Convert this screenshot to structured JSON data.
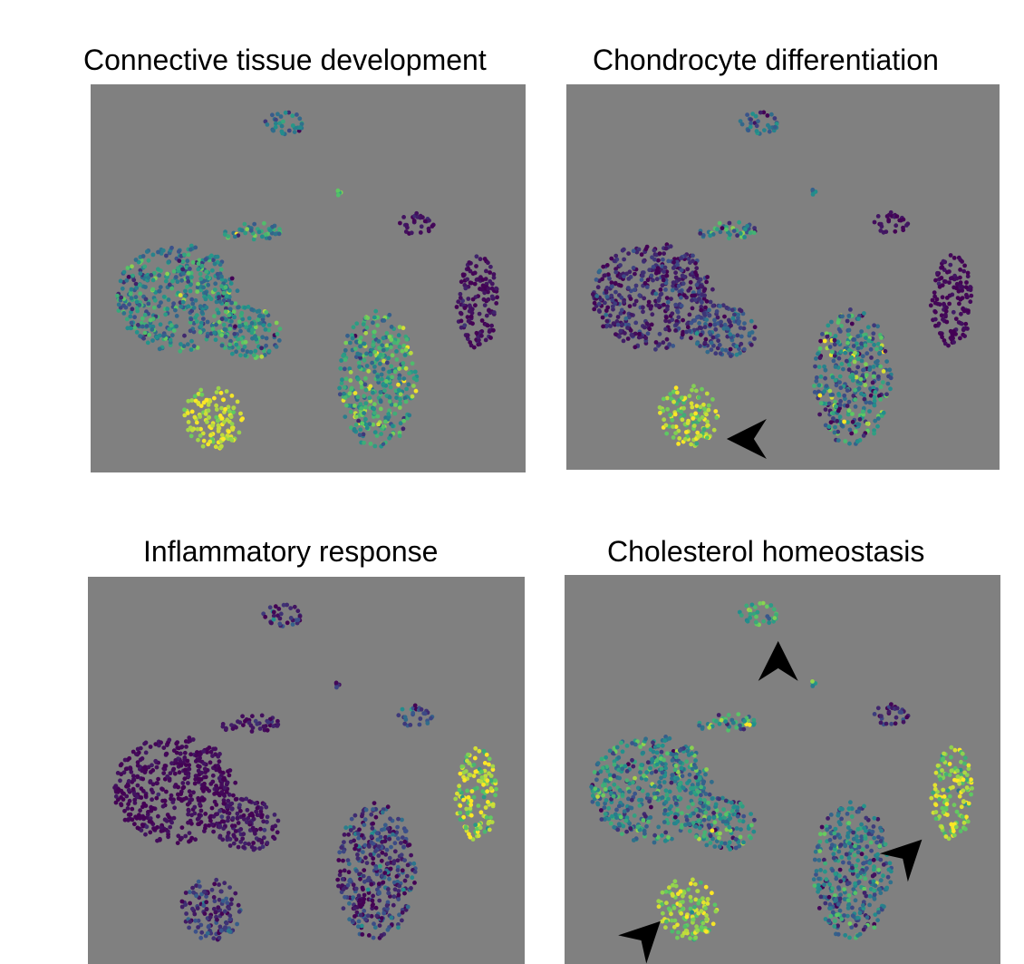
{
  "figure": {
    "colors": {
      "background": "#808080",
      "low": "#440154",
      "mid": "#21918c",
      "high": "#fde725",
      "arrow": "#000000"
    }
  },
  "chart_data": [
    {
      "type": "scatter",
      "title": "Connective tissue development",
      "xlabel": "",
      "ylabel": "",
      "color_scale": "viridis",
      "clusters": [
        {
          "id": "top-small",
          "cx": 0.45,
          "cy": 0.1,
          "rx": 0.05,
          "ry": 0.03,
          "level": 0.4,
          "level_spread": 0.15
        },
        {
          "id": "tiny",
          "cx": 0.57,
          "cy": 0.28,
          "rx": 0.007,
          "ry": 0.008,
          "level": 0.7,
          "level_spread": 0.1
        },
        {
          "id": "upper-left-strip",
          "cx": 0.37,
          "cy": 0.38,
          "rx": 0.07,
          "ry": 0.025,
          "level": 0.5,
          "level_spread": 0.2
        },
        {
          "id": "large-left",
          "cx": 0.2,
          "cy": 0.55,
          "rx": 0.14,
          "ry": 0.14,
          "level": 0.42,
          "level_spread": 0.18
        },
        {
          "id": "left-arm",
          "cx": 0.36,
          "cy": 0.64,
          "rx": 0.08,
          "ry": 0.07,
          "level": 0.48,
          "level_spread": 0.18
        },
        {
          "id": "bottom-left",
          "cx": 0.28,
          "cy": 0.86,
          "rx": 0.07,
          "ry": 0.08,
          "level": 0.92,
          "level_spread": 0.08
        },
        {
          "id": "mid-right",
          "cx": 0.75,
          "cy": 0.36,
          "rx": 0.04,
          "ry": 0.03,
          "level": 0.04,
          "level_spread": 0.04
        },
        {
          "id": "far-right",
          "cx": 0.89,
          "cy": 0.56,
          "rx": 0.05,
          "ry": 0.12,
          "level": 0.03,
          "level_spread": 0.04
        },
        {
          "id": "bottom-center",
          "cx": 0.66,
          "cy": 0.76,
          "rx": 0.09,
          "ry": 0.18,
          "level": 0.6,
          "level_spread": 0.2
        }
      ],
      "arrowheads": []
    },
    {
      "type": "scatter",
      "title": "Chondrocyte differentiation",
      "xlabel": "",
      "ylabel": "",
      "color_scale": "viridis",
      "clusters": [
        {
          "id": "top-small",
          "cx": 0.45,
          "cy": 0.1,
          "rx": 0.05,
          "ry": 0.03,
          "level": 0.3,
          "level_spread": 0.15
        },
        {
          "id": "tiny",
          "cx": 0.57,
          "cy": 0.28,
          "rx": 0.007,
          "ry": 0.008,
          "level": 0.4,
          "level_spread": 0.1
        },
        {
          "id": "upper-left-strip",
          "cx": 0.37,
          "cy": 0.38,
          "rx": 0.07,
          "ry": 0.025,
          "level": 0.42,
          "level_spread": 0.2
        },
        {
          "id": "large-left",
          "cx": 0.2,
          "cy": 0.55,
          "rx": 0.14,
          "ry": 0.14,
          "level": 0.1,
          "level_spread": 0.1
        },
        {
          "id": "left-arm",
          "cx": 0.36,
          "cy": 0.64,
          "rx": 0.08,
          "ry": 0.07,
          "level": 0.2,
          "level_spread": 0.12
        },
        {
          "id": "bottom-left",
          "cx": 0.28,
          "cy": 0.86,
          "rx": 0.07,
          "ry": 0.08,
          "level": 0.85,
          "level_spread": 0.12
        },
        {
          "id": "mid-right",
          "cx": 0.75,
          "cy": 0.36,
          "rx": 0.04,
          "ry": 0.03,
          "level": 0.02,
          "level_spread": 0.03
        },
        {
          "id": "far-right",
          "cx": 0.89,
          "cy": 0.56,
          "rx": 0.05,
          "ry": 0.12,
          "level": 0.02,
          "level_spread": 0.03
        },
        {
          "id": "bottom-center",
          "cx": 0.66,
          "cy": 0.76,
          "rx": 0.09,
          "ry": 0.18,
          "level": 0.4,
          "level_spread": 0.25
        }
      ],
      "arrowheads": [
        {
          "tip_x": 0.37,
          "tip_y": 0.92,
          "direction": "left"
        }
      ]
    },
    {
      "type": "scatter",
      "title": "Inflammatory response",
      "xlabel": "",
      "ylabel": "",
      "color_scale": "viridis",
      "clusters": [
        {
          "id": "top-small",
          "cx": 0.45,
          "cy": 0.1,
          "rx": 0.05,
          "ry": 0.03,
          "level": 0.15,
          "level_spread": 0.12
        },
        {
          "id": "tiny",
          "cx": 0.57,
          "cy": 0.28,
          "rx": 0.007,
          "ry": 0.008,
          "level": 0.1,
          "level_spread": 0.08
        },
        {
          "id": "upper-left-strip",
          "cx": 0.37,
          "cy": 0.38,
          "rx": 0.07,
          "ry": 0.025,
          "level": 0.06,
          "level_spread": 0.06
        },
        {
          "id": "large-left",
          "cx": 0.2,
          "cy": 0.55,
          "rx": 0.14,
          "ry": 0.14,
          "level": 0.02,
          "level_spread": 0.03
        },
        {
          "id": "left-arm",
          "cx": 0.36,
          "cy": 0.64,
          "rx": 0.08,
          "ry": 0.07,
          "level": 0.05,
          "level_spread": 0.05
        },
        {
          "id": "bottom-left",
          "cx": 0.28,
          "cy": 0.86,
          "rx": 0.07,
          "ry": 0.08,
          "level": 0.12,
          "level_spread": 0.12
        },
        {
          "id": "mid-right",
          "cx": 0.75,
          "cy": 0.36,
          "rx": 0.04,
          "ry": 0.03,
          "level": 0.2,
          "level_spread": 0.15
        },
        {
          "id": "far-right",
          "cx": 0.89,
          "cy": 0.56,
          "rx": 0.05,
          "ry": 0.12,
          "level": 0.85,
          "level_spread": 0.15
        },
        {
          "id": "bottom-center",
          "cx": 0.66,
          "cy": 0.76,
          "rx": 0.09,
          "ry": 0.18,
          "level": 0.15,
          "level_spread": 0.15
        }
      ],
      "arrowheads": []
    },
    {
      "type": "scatter",
      "title": "Cholesterol homeostasis",
      "xlabel": "",
      "ylabel": "",
      "color_scale": "viridis",
      "clusters": [
        {
          "id": "top-small",
          "cx": 0.45,
          "cy": 0.1,
          "rx": 0.05,
          "ry": 0.03,
          "level": 0.65,
          "level_spread": 0.15
        },
        {
          "id": "tiny",
          "cx": 0.57,
          "cy": 0.28,
          "rx": 0.007,
          "ry": 0.008,
          "level": 0.55,
          "level_spread": 0.1
        },
        {
          "id": "upper-left-strip",
          "cx": 0.37,
          "cy": 0.38,
          "rx": 0.07,
          "ry": 0.025,
          "level": 0.5,
          "level_spread": 0.2
        },
        {
          "id": "large-left",
          "cx": 0.2,
          "cy": 0.55,
          "rx": 0.14,
          "ry": 0.14,
          "level": 0.45,
          "level_spread": 0.2
        },
        {
          "id": "left-arm",
          "cx": 0.36,
          "cy": 0.64,
          "rx": 0.08,
          "ry": 0.07,
          "level": 0.45,
          "level_spread": 0.2
        },
        {
          "id": "bottom-left",
          "cx": 0.28,
          "cy": 0.86,
          "rx": 0.07,
          "ry": 0.08,
          "level": 0.85,
          "level_spread": 0.12
        },
        {
          "id": "mid-right",
          "cx": 0.75,
          "cy": 0.36,
          "rx": 0.04,
          "ry": 0.03,
          "level": 0.1,
          "level_spread": 0.1
        },
        {
          "id": "far-right",
          "cx": 0.89,
          "cy": 0.56,
          "rx": 0.05,
          "ry": 0.12,
          "level": 0.82,
          "level_spread": 0.15
        },
        {
          "id": "bottom-center",
          "cx": 0.66,
          "cy": 0.76,
          "rx": 0.09,
          "ry": 0.18,
          "level": 0.35,
          "level_spread": 0.18
        }
      ],
      "arrowheads": [
        {
          "tip_x": 0.49,
          "tip_y": 0.17,
          "direction": "up"
        },
        {
          "tip_x": 0.82,
          "tip_y": 0.68,
          "direction": "up-right"
        },
        {
          "tip_x": 0.22,
          "tip_y": 0.89,
          "direction": "up-right"
        }
      ]
    }
  ]
}
